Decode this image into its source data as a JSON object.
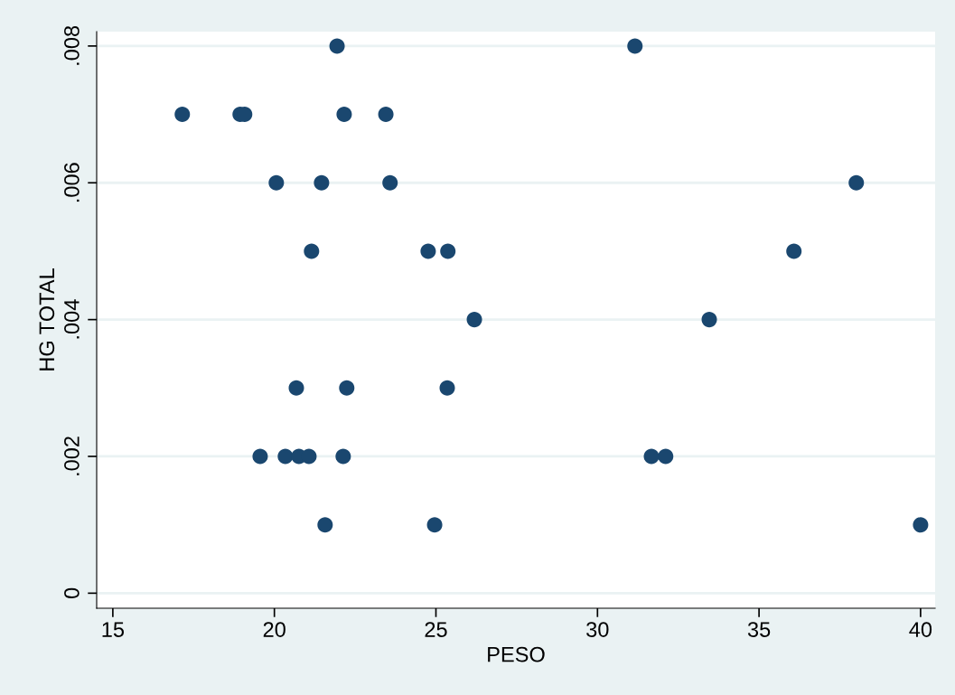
{
  "chart_data": {
    "type": "scatter",
    "xlabel": "PESO",
    "ylabel": "HG TOTAL",
    "x": [
      17.15,
      18.94,
      19.08,
      21.94,
      22.16,
      23.45,
      20.06,
      21.46,
      23.58,
      21.15,
      24.76,
      25.37,
      26.19,
      20.68,
      22.24,
      25.35,
      19.56,
      20.34,
      20.76,
      21.07,
      22.13,
      21.57,
      24.96,
      31.16,
      38.01,
      36.08,
      33.46,
      31.67,
      32.11,
      40.0
    ],
    "values": [
      0.007,
      0.007,
      0.007,
      0.008,
      0.007,
      0.007,
      0.006,
      0.006,
      0.006,
      0.005,
      0.005,
      0.005,
      0.004,
      0.003,
      0.003,
      0.003,
      0.002,
      0.002,
      0.002,
      0.002,
      0.002,
      0.001,
      0.001,
      0.008,
      0.006,
      0.005,
      0.004,
      0.002,
      0.002,
      0.001
    ],
    "color": "#1a476f",
    "marker": "circle",
    "grid": "y",
    "xlim": [
      14.5,
      40.45
    ],
    "xticks": [
      15,
      20,
      25,
      30,
      35,
      40
    ],
    "ylim": [
      -0.00022,
      0.00821
    ],
    "yticks": [
      {
        "value": 0,
        "label": "0"
      },
      {
        "value": 0.002,
        "label": ".002"
      },
      {
        "value": 0.004,
        "label": ".004"
      },
      {
        "value": 0.006,
        "label": ".006"
      },
      {
        "value": 0.008,
        "label": ".008"
      }
    ]
  }
}
